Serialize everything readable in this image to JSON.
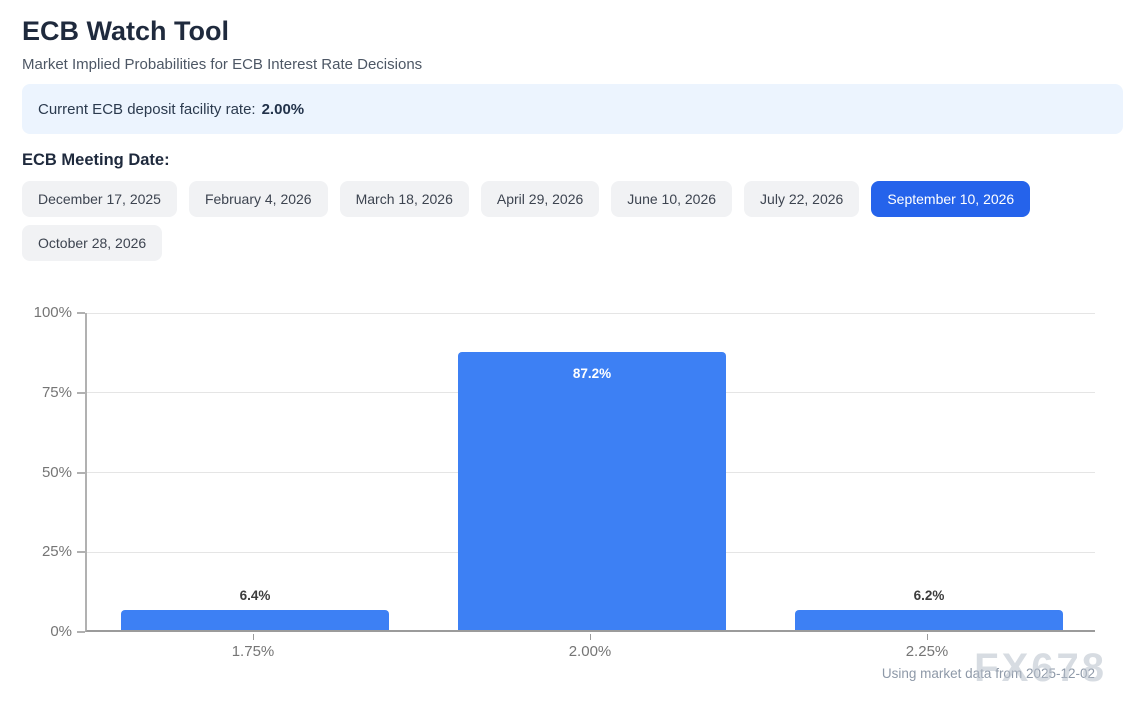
{
  "header": {
    "title": "ECB Watch Tool",
    "subtitle": "Market Implied Probabilities for ECB Interest Rate Decisions"
  },
  "info_banner": {
    "label": "Current ECB deposit facility rate:",
    "value": "2.00%"
  },
  "meeting_section": {
    "label": "ECB Meeting Date:",
    "dates": [
      {
        "label": "December 17, 2025",
        "selected": false
      },
      {
        "label": "February 4, 2026",
        "selected": false
      },
      {
        "label": "March 18, 2026",
        "selected": false
      },
      {
        "label": "April 29, 2026",
        "selected": false
      },
      {
        "label": "June 10, 2026",
        "selected": false
      },
      {
        "label": "July 22, 2026",
        "selected": false
      },
      {
        "label": "September 10, 2026",
        "selected": true
      },
      {
        "label": "October 28, 2026",
        "selected": false
      }
    ]
  },
  "chart_data": {
    "type": "bar",
    "title": "",
    "categories": [
      "1.75%",
      "2.00%",
      "2.25%"
    ],
    "values": [
      6.4,
      87.2,
      6.2
    ],
    "value_labels": [
      "6.4%",
      "87.2%",
      "6.2%"
    ],
    "xlabel": "",
    "ylabel": "",
    "ylim": [
      0,
      100
    ],
    "y_ticks": [
      0,
      25,
      50,
      75,
      100
    ],
    "y_tick_labels": [
      "0%",
      "25%",
      "50%",
      "75%",
      "100%"
    ],
    "grid": true,
    "legend": false,
    "bar_color": "#3d80f4"
  },
  "footer": {
    "note": "Using market data from 2025-12-02",
    "watermark": "FX678"
  },
  "colors": {
    "accent_blue": "#2563eb",
    "bar_blue": "#3d80f4",
    "banner_bg": "#ecf4fe",
    "button_bg": "#f1f2f4",
    "title_text": "#1f2a3d",
    "muted_text": "#757575"
  }
}
